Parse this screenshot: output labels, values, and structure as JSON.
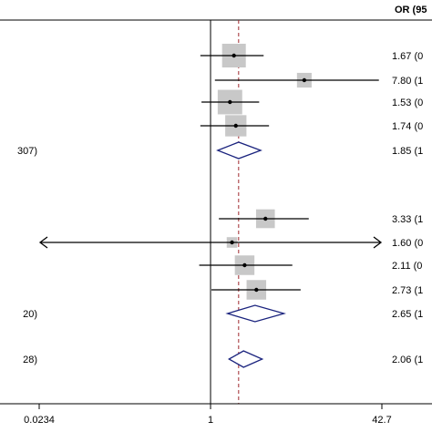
{
  "chart_data": {
    "type": "forest",
    "header": "OR (95",
    "x_scale": "log",
    "xlim": [
      0.0234,
      42.7
    ],
    "x_ticks": [
      "0.0234",
      "1",
      "42.7"
    ],
    "reference_line": 1,
    "overall_line": 1.85,
    "rows": [
      {
        "kind": "study",
        "or": 1.67,
        "lo": 0.8,
        "hi": 3.2,
        "weight": 1.0,
        "label": "1.67 (0"
      },
      {
        "kind": "study",
        "or": 7.8,
        "lo": 1.1,
        "hi": 40.0,
        "weight": 0.45,
        "label": "7.80 (1"
      },
      {
        "kind": "study",
        "or": 1.53,
        "lo": 0.82,
        "hi": 2.9,
        "weight": 1.05,
        "label": "1.53 (0"
      },
      {
        "kind": "study",
        "or": 1.74,
        "lo": 0.8,
        "hi": 3.6,
        "weight": 0.85,
        "label": "1.74 (0"
      },
      {
        "kind": "summary",
        "or": 1.85,
        "lo": 1.17,
        "hi": 3.0,
        "left_text": "307)",
        "label": "1.85 (1"
      },
      {
        "kind": "study",
        "or": 3.33,
        "lo": 1.2,
        "hi": 8.6,
        "weight": 0.7,
        "label": "3.33 (1"
      },
      {
        "kind": "study",
        "or": 1.6,
        "lo": 0.0234,
        "hi": 42.7,
        "weight": 0.2,
        "arrow": true,
        "label": "1.60 (0"
      },
      {
        "kind": "study",
        "or": 2.11,
        "lo": 0.78,
        "hi": 6.0,
        "weight": 0.75,
        "label": "2.11 (0"
      },
      {
        "kind": "study",
        "or": 2.73,
        "lo": 1.02,
        "hi": 7.2,
        "weight": 0.75,
        "label": "2.73 (1"
      },
      {
        "kind": "summary",
        "or": 2.65,
        "lo": 1.45,
        "hi": 5.0,
        "left_text": "20)",
        "label": "2.65 (1"
      },
      {
        "kind": "summary",
        "or": 2.06,
        "lo": 1.5,
        "hi": 3.1,
        "left_text": "28)",
        "label": "2.06 (1"
      }
    ]
  }
}
